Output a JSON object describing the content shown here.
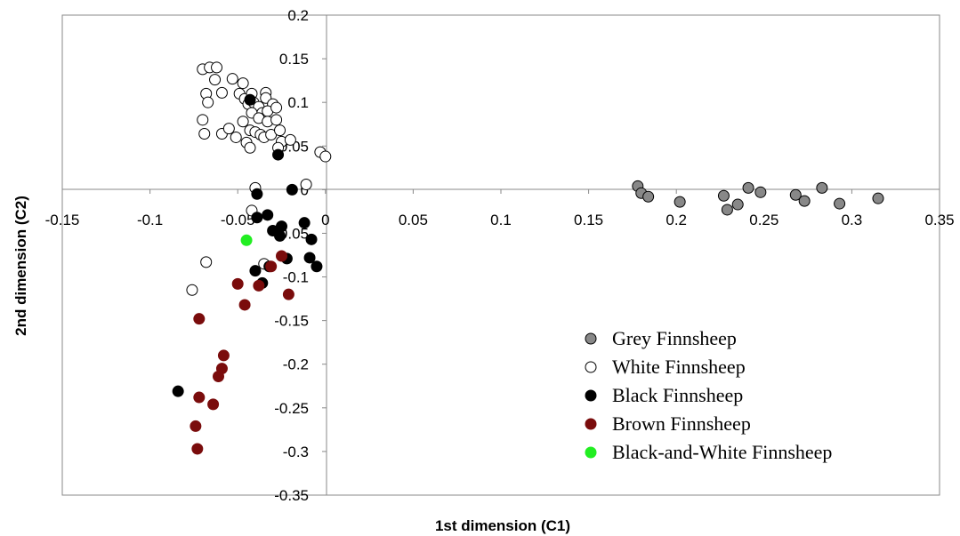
{
  "chart_data": {
    "type": "scatter",
    "title": "",
    "xlabel": "1st dimension (C1)",
    "ylabel": "2nd dimension (C2)",
    "xlim": [
      -0.15,
      0.35
    ],
    "ylim": [
      -0.35,
      0.2
    ],
    "xticks": [
      -0.15,
      -0.1,
      -0.05,
      0,
      0.05,
      0.1,
      0.15,
      0.2,
      0.25,
      0.3,
      0.35
    ],
    "yticks": [
      -0.35,
      -0.3,
      -0.25,
      -0.2,
      -0.15,
      -0.1,
      -0.05,
      0,
      0.05,
      0.1,
      0.15,
      0.2
    ],
    "xtick_labels": [
      "-0.15",
      "-0.1",
      "-0.05",
      "0",
      "0.05",
      "0.1",
      "0.15",
      "0.2",
      "0.25",
      "0.3",
      "0.35"
    ],
    "ytick_labels": [
      "-0.35",
      "-0.3",
      "-0.25",
      "-0.2",
      "-0.15",
      "-0.1",
      "-0.05",
      "0",
      "0.05",
      "0.1",
      "0.15",
      "0.2"
    ],
    "grid": false,
    "legend_position": "bottom-right",
    "series": [
      {
        "name": "Grey Finnsheep",
        "fill": "#888888",
        "stroke": "#000000",
        "points": [
          [
            0.178,
            0.004
          ],
          [
            0.18,
            -0.004
          ],
          [
            0.184,
            -0.008
          ],
          [
            0.202,
            -0.014
          ],
          [
            0.227,
            -0.007
          ],
          [
            0.229,
            -0.023
          ],
          [
            0.235,
            -0.017
          ],
          [
            0.241,
            0.002
          ],
          [
            0.248,
            -0.003
          ],
          [
            0.268,
            -0.006
          ],
          [
            0.273,
            -0.013
          ],
          [
            0.283,
            0.002
          ],
          [
            0.293,
            -0.016
          ],
          [
            0.315,
            -0.01
          ]
        ]
      },
      {
        "name": "White Finnsheep",
        "fill": "#ffffff",
        "stroke": "#000000",
        "points": [
          [
            -0.07,
            0.138
          ],
          [
            -0.066,
            0.14
          ],
          [
            -0.062,
            0.14
          ],
          [
            -0.063,
            0.126
          ],
          [
            -0.053,
            0.127
          ],
          [
            -0.047,
            0.122
          ],
          [
            -0.068,
            0.11
          ],
          [
            -0.059,
            0.111
          ],
          [
            -0.049,
            0.11
          ],
          [
            -0.046,
            0.104
          ],
          [
            -0.042,
            0.11
          ],
          [
            -0.034,
            0.111
          ],
          [
            -0.044,
            0.098
          ],
          [
            -0.041,
            0.1
          ],
          [
            -0.038,
            0.095
          ],
          [
            -0.034,
            0.105
          ],
          [
            -0.03,
            0.098
          ],
          [
            -0.067,
            0.1
          ],
          [
            -0.042,
            0.088
          ],
          [
            -0.036,
            0.088
          ],
          [
            -0.033,
            0.09
          ],
          [
            -0.028,
            0.094
          ],
          [
            -0.038,
            0.082
          ],
          [
            -0.033,
            0.078
          ],
          [
            -0.028,
            0.08
          ],
          [
            -0.047,
            0.078
          ],
          [
            -0.07,
            0.08
          ],
          [
            -0.069,
            0.064
          ],
          [
            -0.059,
            0.064
          ],
          [
            -0.055,
            0.07
          ],
          [
            -0.051,
            0.06
          ],
          [
            -0.043,
            0.068
          ],
          [
            -0.04,
            0.066
          ],
          [
            -0.037,
            0.063
          ],
          [
            -0.035,
            0.06
          ],
          [
            -0.031,
            0.063
          ],
          [
            -0.026,
            0.068
          ],
          [
            -0.045,
            0.054
          ],
          [
            -0.043,
            0.048
          ],
          [
            -0.025,
            0.055
          ],
          [
            -0.02,
            0.057
          ],
          [
            -0.027,
            0.048
          ],
          [
            -0.003,
            0.043
          ],
          [
            0,
            0.038
          ],
          [
            -0.011,
            0.006
          ],
          [
            -0.04,
            0.002
          ],
          [
            -0.042,
            -0.024
          ],
          [
            -0.035,
            -0.085
          ],
          [
            -0.068,
            -0.083
          ],
          [
            -0.076,
            -0.115
          ]
        ]
      },
      {
        "name": "Black Finnsheep",
        "fill": "#000000",
        "stroke": "#000000",
        "points": [
          [
            -0.043,
            0.103
          ],
          [
            -0.027,
            0.04
          ],
          [
            -0.019,
            0.0
          ],
          [
            -0.039,
            -0.005
          ],
          [
            -0.033,
            -0.029
          ],
          [
            -0.025,
            -0.042
          ],
          [
            -0.012,
            -0.038
          ],
          [
            -0.03,
            -0.047
          ],
          [
            -0.026,
            -0.053
          ],
          [
            -0.008,
            -0.057
          ],
          [
            -0.039,
            -0.032
          ],
          [
            -0.022,
            -0.079
          ],
          [
            -0.009,
            -0.078
          ],
          [
            -0.005,
            -0.088
          ],
          [
            -0.032,
            -0.088
          ],
          [
            -0.04,
            -0.093
          ],
          [
            -0.036,
            -0.107
          ],
          [
            -0.084,
            -0.231
          ]
        ]
      },
      {
        "name": "Brown Finnsheep",
        "fill": "#7a0c0c",
        "stroke": "#7a0c0c",
        "points": [
          [
            -0.025,
            -0.076
          ],
          [
            -0.031,
            -0.088
          ],
          [
            -0.05,
            -0.108
          ],
          [
            -0.038,
            -0.11
          ],
          [
            -0.021,
            -0.12
          ],
          [
            -0.046,
            -0.132
          ],
          [
            -0.072,
            -0.148
          ],
          [
            -0.058,
            -0.19
          ],
          [
            -0.059,
            -0.205
          ],
          [
            -0.061,
            -0.214
          ],
          [
            -0.072,
            -0.238
          ],
          [
            -0.064,
            -0.246
          ],
          [
            -0.074,
            -0.271
          ],
          [
            -0.073,
            -0.297
          ]
        ]
      },
      {
        "name": "Black-and-White Finnsheep",
        "fill": "#22ee22",
        "stroke": "#22ee22",
        "points": [
          [
            -0.045,
            -0.058
          ]
        ]
      }
    ]
  }
}
